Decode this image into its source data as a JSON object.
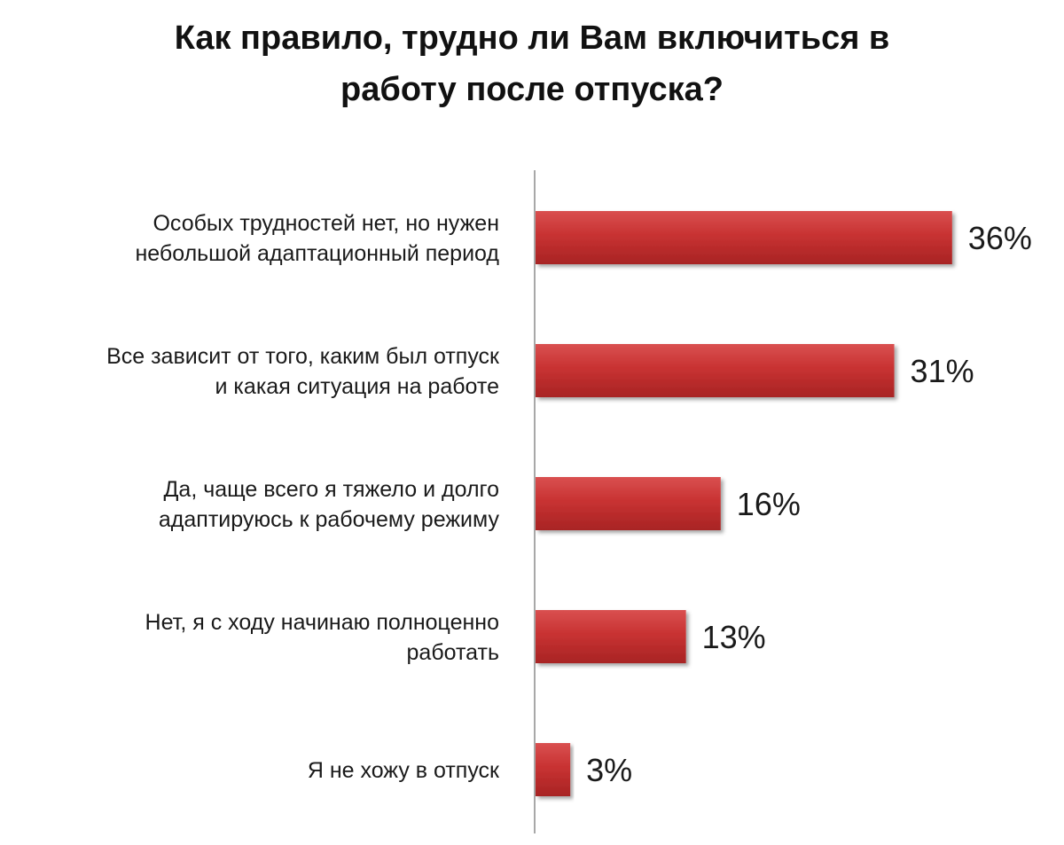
{
  "chart_data": {
    "type": "bar",
    "orientation": "horizontal",
    "title_lines": [
      "Как правило, трудно ли Вам включиться в",
      "работу после отпуска?"
    ],
    "categories": [
      [
        "Особых трудностей нет, но нужен",
        "небольшой адаптационный период"
      ],
      [
        "Все зависит от того, каким был отпуск",
        "и какая ситуация на работе"
      ],
      [
        "Да, чаще всего я тяжело и долго",
        "адаптируюсь к рабочему режиму"
      ],
      [
        "Нет, я с ходу начинаю полноценно",
        "работать"
      ],
      [
        "Я не хожу в отпуск"
      ]
    ],
    "values": [
      36,
      31,
      16,
      13,
      3
    ],
    "value_labels": [
      "36%",
      "31%",
      "16%",
      "13%",
      "3%"
    ],
    "unit": "%",
    "bar_color": "#c83232",
    "xlim": [
      0,
      40
    ],
    "grid": false,
    "legend": "none"
  }
}
